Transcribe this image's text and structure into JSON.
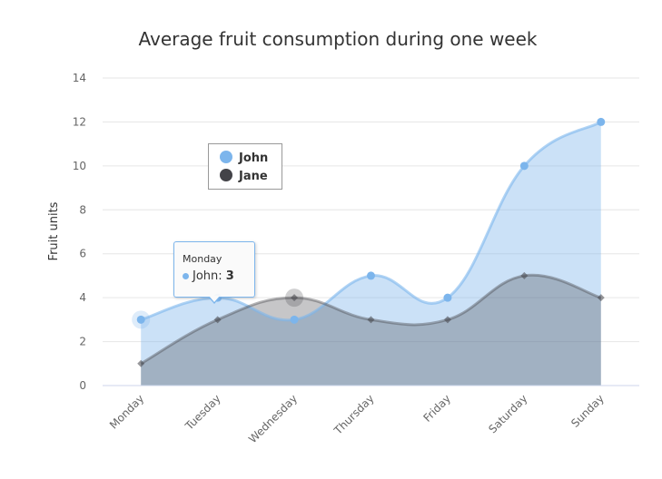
{
  "chart_data": {
    "type": "area",
    "title": "Average fruit consumption during one week",
    "categories": [
      "Monday",
      "Tuesday",
      "Wednesday",
      "Thursday",
      "Friday",
      "Saturday",
      "Sunday"
    ],
    "ylabel": "Fruit units",
    "xlabel": "",
    "ylim": [
      0,
      14
    ],
    "yticks": [
      0,
      2,
      4,
      6,
      8,
      10,
      12,
      14
    ],
    "grid": true,
    "legend_position": "top-left",
    "series": [
      {
        "name": "John",
        "values": [
          3,
          4,
          3,
          5,
          4,
          10,
          12
        ],
        "color": "#7cb5ec",
        "marker": "circle"
      },
      {
        "name": "Jane",
        "values": [
          1,
          3,
          4,
          3,
          3,
          5,
          4
        ],
        "color": "#434348",
        "marker": "diamond"
      }
    ]
  },
  "tooltip": {
    "header": "Monday",
    "series_label": "John: ",
    "value": "3",
    "color": "#7cb5ec"
  }
}
